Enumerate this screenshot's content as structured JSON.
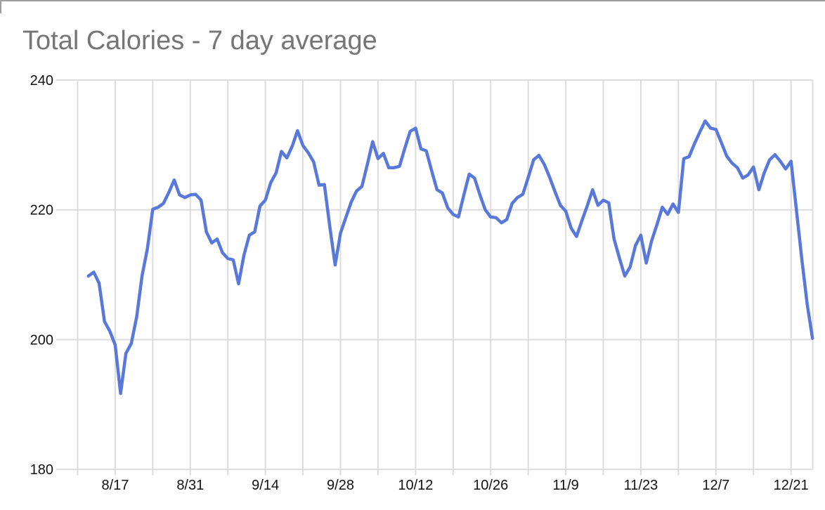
{
  "window": {
    "title": "Total Calories - 7 day average"
  },
  "chart_data": {
    "type": "line",
    "title": "Total Calories - 7 day average",
    "series_name": "Total Calories (7 day average)",
    "legend": "none",
    "grid": true,
    "ylim": [
      180,
      240
    ],
    "y_ticks": [
      240,
      220,
      200,
      180
    ],
    "x_tick_labels": [
      "8/17",
      "8/31",
      "9/14",
      "9/28",
      "10/12",
      "10/26",
      "11/9",
      "11/23",
      "12/7",
      "12/21"
    ],
    "x": [
      "8/12",
      "8/13",
      "8/14",
      "8/15",
      "8/16",
      "8/17",
      "8/18",
      "8/19",
      "8/20",
      "8/21",
      "8/22",
      "8/23",
      "8/24",
      "8/25",
      "8/26",
      "8/27",
      "8/28",
      "8/29",
      "8/30",
      "8/31",
      "9/1",
      "9/2",
      "9/3",
      "9/4",
      "9/5",
      "9/6",
      "9/7",
      "9/8",
      "9/9",
      "9/10",
      "9/11",
      "9/12",
      "9/13",
      "9/14",
      "9/15",
      "9/16",
      "9/17",
      "9/18",
      "9/19",
      "9/20",
      "9/21",
      "9/22",
      "9/23",
      "9/24",
      "9/25",
      "9/26",
      "9/27",
      "9/28",
      "9/29",
      "9/30",
      "10/1",
      "10/2",
      "10/3",
      "10/4",
      "10/5",
      "10/6",
      "10/7",
      "10/8",
      "10/9",
      "10/10",
      "10/11",
      "10/12",
      "10/13",
      "10/14",
      "10/15",
      "10/16",
      "10/17",
      "10/18",
      "10/19",
      "10/20",
      "10/21",
      "10/22",
      "10/23",
      "10/24",
      "10/25",
      "10/26",
      "10/27",
      "10/28",
      "10/29",
      "10/30",
      "10/31",
      "11/1",
      "11/2",
      "11/3",
      "11/4",
      "11/5",
      "11/6",
      "11/7",
      "11/8",
      "11/9",
      "11/10",
      "11/11",
      "11/12",
      "11/13",
      "11/14",
      "11/15",
      "11/16",
      "11/17",
      "11/18",
      "11/19",
      "11/20",
      "11/21",
      "11/22",
      "11/23",
      "11/24",
      "11/25",
      "11/26",
      "11/27",
      "11/28",
      "11/29",
      "11/30",
      "12/1",
      "12/2",
      "12/3",
      "12/4",
      "12/5",
      "12/6",
      "12/7",
      "12/8",
      "12/9",
      "12/10",
      "12/11",
      "12/12",
      "12/13",
      "12/14",
      "12/15",
      "12/16",
      "12/17",
      "12/18",
      "12/19",
      "12/20",
      "12/21",
      "12/22",
      "12/23",
      "12/24",
      "12/25"
    ],
    "values": [
      209.8,
      210.4,
      208.7,
      202.8,
      201.3,
      199.2,
      191.7,
      197.9,
      199.4,
      203.5,
      209.8,
      214.0,
      220.1,
      220.4,
      221.0,
      222.7,
      224.6,
      222.3,
      221.9,
      222.3,
      222.4,
      221.5,
      216.6,
      214.9,
      215.5,
      213.4,
      212.5,
      212.3,
      208.6,
      213.0,
      216.1,
      216.6,
      220.6,
      221.5,
      224.2,
      225.7,
      229.0,
      228.0,
      229.8,
      232.2,
      229.9,
      228.8,
      227.4,
      223.8,
      223.9,
      217.5,
      211.5,
      216.4,
      218.8,
      221.2,
      222.9,
      223.6,
      227.0,
      230.5,
      227.9,
      228.7,
      226.5,
      226.5,
      226.7,
      229.5,
      232.1,
      232.6,
      229.4,
      229.1,
      226.0,
      223.1,
      222.6,
      220.3,
      219.3,
      218.9,
      222.3,
      225.5,
      224.9,
      222.3,
      220.0,
      218.9,
      218.8,
      218.0,
      218.5,
      221.0,
      221.9,
      222.4,
      225.0,
      227.7,
      228.4,
      227.0,
      225.0,
      222.8,
      220.7,
      219.8,
      217.2,
      215.9,
      218.3,
      220.6,
      223.1,
      220.7,
      221.5,
      221.1,
      215.5,
      212.6,
      209.8,
      211.2,
      214.5,
      216.1,
      211.8,
      215.2,
      217.7,
      220.4,
      219.3,
      220.9,
      219.6,
      227.9,
      228.2,
      230.2,
      232.0,
      233.7,
      232.6,
      232.4,
      230.4,
      228.3,
      227.2,
      226.5,
      224.9,
      225.4,
      226.6,
      223.1,
      225.7,
      227.7,
      228.5,
      227.5,
      226.3,
      227.5,
      220.0,
      212.5,
      205.5,
      200.2
    ],
    "colors": {
      "line": "#5878da",
      "gridline": "#dcdcdc",
      "axis_text": "#111111",
      "title_text": "#757575",
      "top_border": "#9e9e9e",
      "background": "#ffffff"
    }
  }
}
